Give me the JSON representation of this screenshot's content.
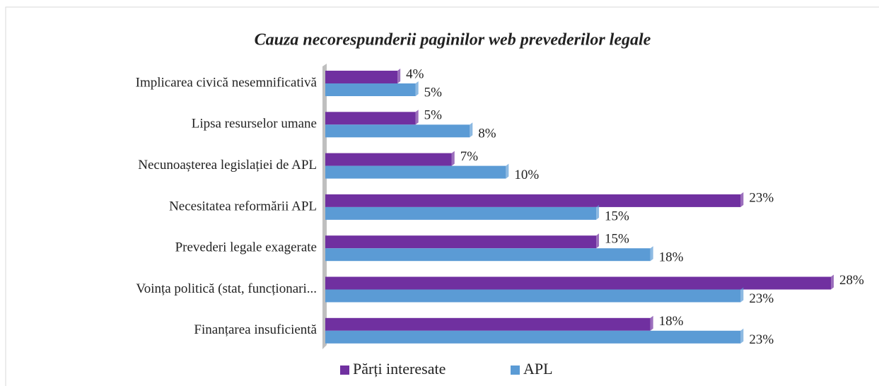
{
  "chart_data": {
    "type": "bar",
    "orientation": "horizontal",
    "title": "Cauza necorespunderii  paginilor web prevederilor legale",
    "categories": [
      "Implicarea civică nesemnificativă",
      "Lipsa resurselor umane",
      "Necunoașterea legislației  de APL",
      "Necesitatea reformării APL",
      "Prevederi legale exagerate",
      "Voința politică (stat, funcționari...",
      "Finanțarea insuficientă"
    ],
    "series": [
      {
        "name": "Părți interesate",
        "color": "#7030a0",
        "values": [
          4,
          5,
          7,
          23,
          15,
          28,
          18
        ],
        "value_labels": [
          "4%",
          "5%",
          "7%",
          "23%",
          "15%",
          "28%",
          "18%"
        ]
      },
      {
        "name": "APL",
        "color": "#5b9bd5",
        "values": [
          5,
          8,
          10,
          15,
          18,
          23,
          23
        ],
        "value_labels": [
          "5%",
          "8%",
          "10%",
          "15%",
          "18%",
          "23%",
          "23%"
        ]
      }
    ],
    "legend": "bottom"
  }
}
